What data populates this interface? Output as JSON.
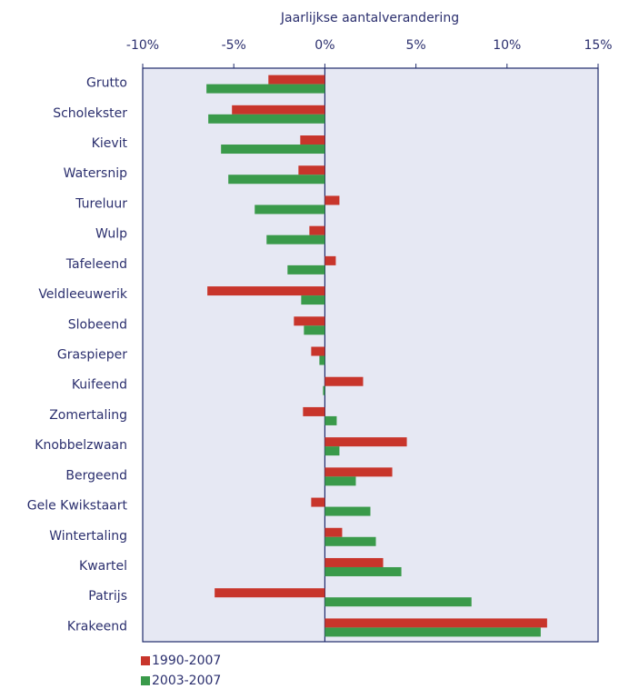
{
  "chart_data": {
    "type": "hbar",
    "x_label": "Jaarlijkse aantalverandering",
    "categories": [
      "Grutto",
      "Scholekster",
      "Kievit",
      "Watersnip",
      "Tureluur",
      "Wulp",
      "Tafeleend",
      "Veldleeuwerik",
      "Slobeend",
      "Graspieper",
      "Kuifeend",
      "Zomertaling",
      "Knobbelzwaan",
      "Bergeend",
      "Gele Kwikstaart",
      "Wintertaling",
      "Kwartel",
      "Patrijs",
      "Krakeend"
    ],
    "series": [
      {
        "name": "1990-2007",
        "color": "#c8352b",
        "values": [
          -3.1,
          -5.1,
          -1.35,
          -1.45,
          0.8,
          -0.85,
          0.6,
          -6.45,
          -1.7,
          -0.75,
          2.1,
          -1.2,
          4.5,
          3.7,
          -0.75,
          0.95,
          3.2,
          -6.05,
          12.2
        ]
      },
      {
        "name": "2003-2007",
        "color": "#3a9a4a",
        "values": [
          -6.5,
          -6.4,
          -5.7,
          -5.3,
          -3.85,
          -3.2,
          -2.05,
          -1.3,
          -1.15,
          -0.3,
          -0.1,
          0.65,
          0.8,
          1.7,
          2.5,
          2.8,
          4.2,
          8.05,
          11.85
        ]
      }
    ],
    "xlim": [
      -10,
      15
    ],
    "xticks": [
      {
        "value": -10,
        "label": "-10%"
      },
      {
        "value": -5,
        "label": "-5%"
      },
      {
        "value": 0,
        "label": "0%"
      },
      {
        "value": 5,
        "label": "5%"
      },
      {
        "value": 10,
        "label": "10%"
      },
      {
        "value": 15,
        "label": "15%"
      }
    ],
    "legend": "bottom-left"
  }
}
